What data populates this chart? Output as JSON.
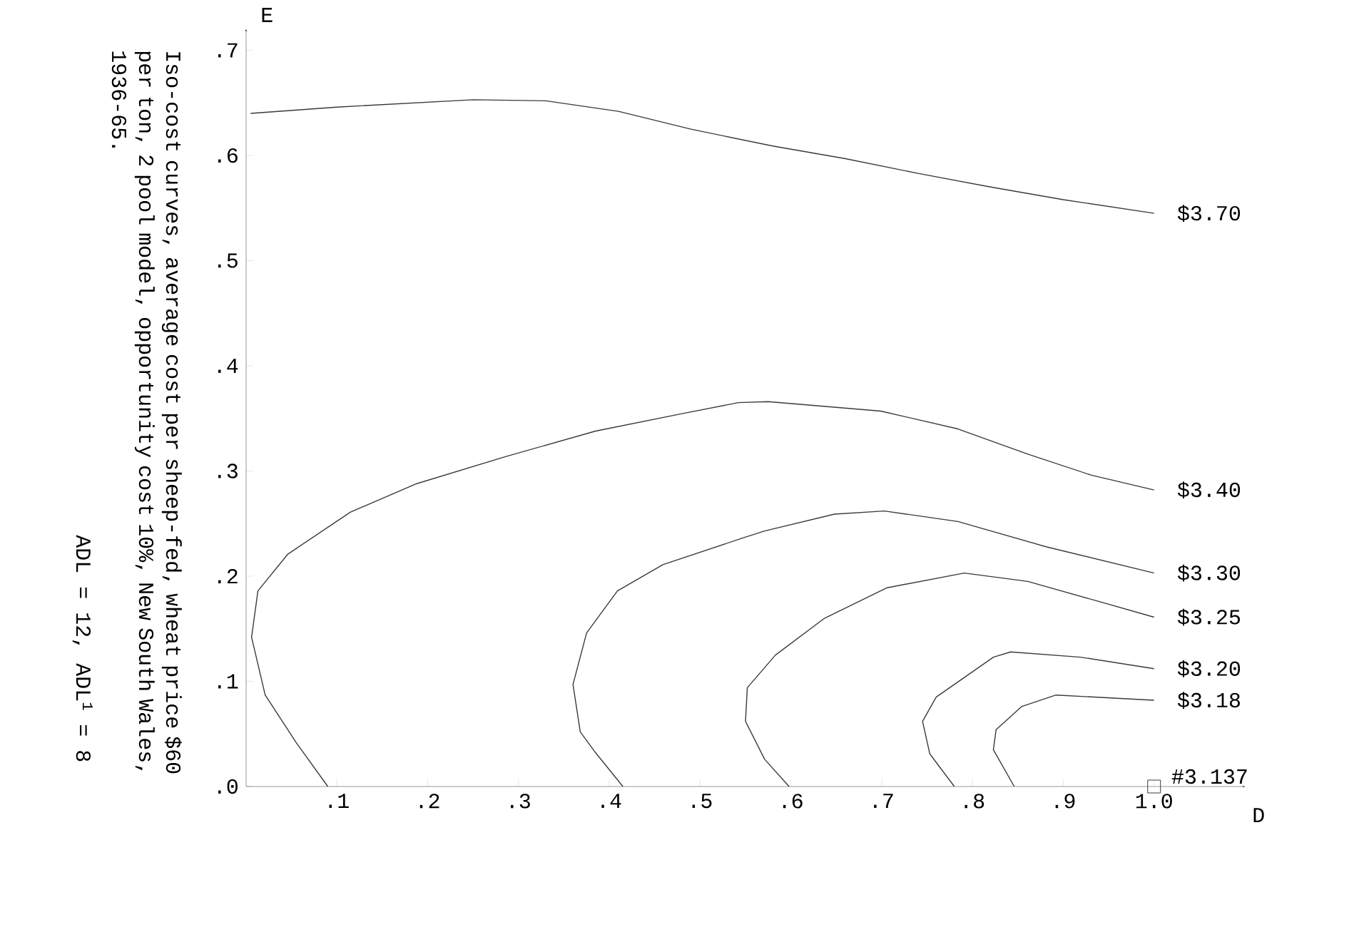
{
  "chart_data": {
    "type": "line",
    "xlabel": "D",
    "ylabel": "E",
    "xlim": [
      0,
      1.1
    ],
    "ylim": [
      0,
      0.72
    ],
    "xticks": [
      {
        "value": 0.1,
        "label": ".1"
      },
      {
        "value": 0.2,
        "label": ".2"
      },
      {
        "value": 0.3,
        "label": ".3"
      },
      {
        "value": 0.4,
        "label": ".4"
      },
      {
        "value": 0.5,
        "label": ".5"
      },
      {
        "value": 0.6,
        "label": ".6"
      },
      {
        "value": 0.7,
        "label": ".7"
      },
      {
        "value": 0.8,
        "label": ".8"
      },
      {
        "value": 0.9,
        "label": ".9"
      },
      {
        "value": 1.0,
        "label": "1.0"
      }
    ],
    "yticks": [
      {
        "value": 0,
        "label": ".0"
      },
      {
        "value": 0.1,
        "label": ".1"
      },
      {
        "value": 0.2,
        "label": ".2"
      },
      {
        "value": 0.3,
        "label": ".3"
      },
      {
        "value": 0.4,
        "label": ".4"
      },
      {
        "value": 0.5,
        "label": ".5"
      },
      {
        "value": 0.6,
        "label": ".6"
      },
      {
        "value": 0.7,
        "label": ".7"
      }
    ],
    "marker": "none",
    "line_style": "solid",
    "annotations": [
      "Iso-cost curves, average cost per sheep-fed, wheat price $60 per ton, 2 pool model, opportunity cost 10%, New South Wales, 1936-65.",
      "ADL = 12, ADL$^{1}$ = 8"
    ],
    "series": [
      {
        "name": "$3.70",
        "color": "#3a3a3a",
        "x": [
          0.005,
          0.1,
          0.25,
          0.33,
          0.41,
          0.49,
          0.58,
          0.66,
          0.74,
          0.82,
          0.9,
          1.0
        ],
        "values": [
          0.64,
          0.646,
          0.653,
          0.652,
          0.642,
          0.625,
          0.609,
          0.597,
          0.583,
          0.57,
          0.558,
          0.545
        ]
      },
      {
        "name": "$3.40",
        "color": "#3a3a3a",
        "x": [
          0.09,
          0.055,
          0.021,
          0.006,
          0.013,
          0.046,
          0.115,
          0.188,
          0.287,
          0.385,
          0.483,
          0.542,
          0.575,
          0.699,
          0.784,
          0.861,
          0.931,
          1.0
        ],
        "values": [
          0,
          0.042,
          0.087,
          0.142,
          0.186,
          0.221,
          0.261,
          0.288,
          0.314,
          0.338,
          0.355,
          0.365,
          0.366,
          0.357,
          0.34,
          0.316,
          0.296,
          0.282
        ]
      },
      {
        "name": "$3.30",
        "color": "#3a3a3a",
        "x": [
          0.415,
          0.385,
          0.368,
          0.36,
          0.375,
          0.409,
          0.459,
          0.546,
          0.571,
          0.648,
          0.703,
          0.784,
          0.881,
          1.0
        ],
        "values": [
          0,
          0.032,
          0.052,
          0.097,
          0.146,
          0.186,
          0.211,
          0.236,
          0.243,
          0.259,
          0.262,
          0.252,
          0.228,
          0.203
        ]
      },
      {
        "name": "$3.25",
        "color": "#3a3a3a",
        "x": [
          0.598,
          0.571,
          0.55,
          0.552,
          0.583,
          0.637,
          0.706,
          0.791,
          0.861,
          0.939,
          1.0
        ],
        "values": [
          0,
          0.026,
          0.062,
          0.094,
          0.125,
          0.16,
          0.189,
          0.203,
          0.195,
          0.176,
          0.161
        ]
      },
      {
        "name": "$3.20",
        "color": "#3a3a3a",
        "x": [
          0.78,
          0.753,
          0.745,
          0.76,
          0.823,
          0.842,
          0.919,
          1.0
        ],
        "values": [
          0,
          0.031,
          0.062,
          0.085,
          0.123,
          0.128,
          0.123,
          0.112
        ]
      },
      {
        "name": "$3.18",
        "color": "#3a3a3a",
        "x": [
          0.846,
          0.823,
          0.826,
          0.854,
          0.892,
          1.0
        ],
        "values": [
          0,
          0.035,
          0.054,
          0.076,
          0.087,
          0.082
        ]
      },
      {
        "name": "#3.137",
        "type": "scatter",
        "marker": "square",
        "color": "#3a3a3a",
        "x": [
          1.0
        ],
        "values": [
          0
        ]
      }
    ]
  }
}
